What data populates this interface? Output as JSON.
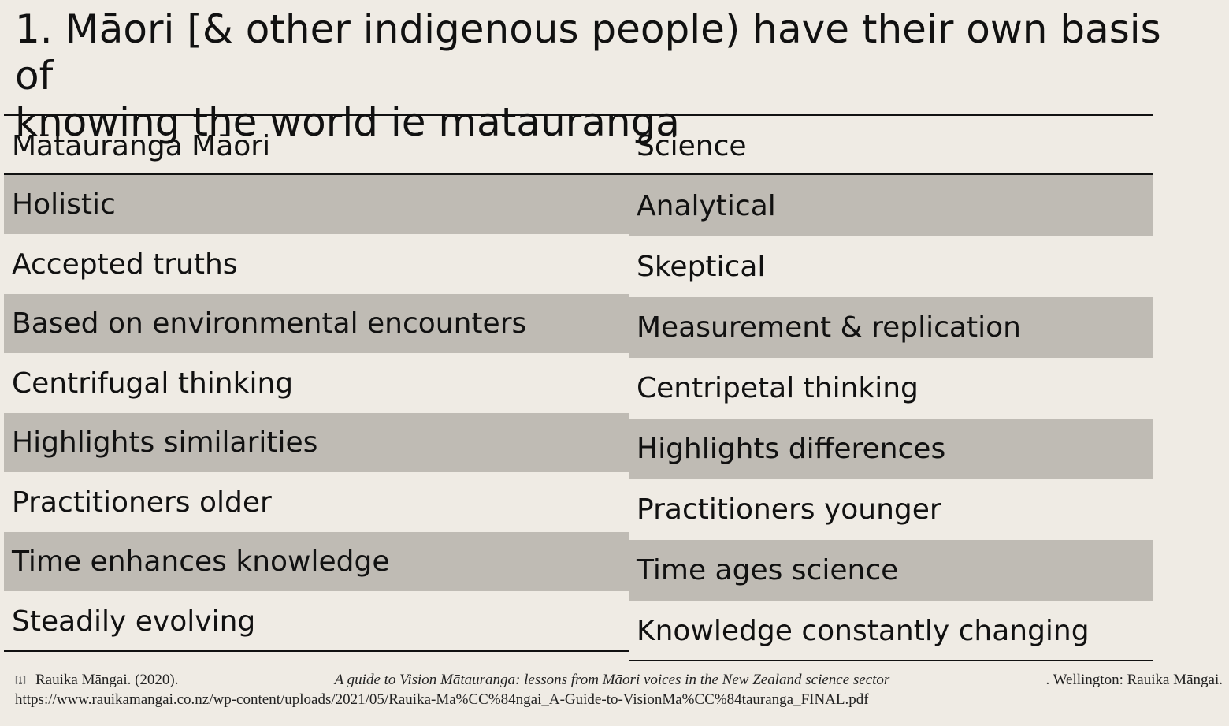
{
  "slide": {
    "title_line1": "1. Māori [& other indigenous people) have their own basis of",
    "title_line2": "knowing the world ie matauranga"
  },
  "table": {
    "headers": [
      "Mātauranga Māori",
      "Science"
    ],
    "left": [
      "Holistic",
      "Accepted truths",
      "Based on environmental encounters",
      "Centrifugal thinking",
      "Highlights similarities",
      "Practitioners older",
      "Time enhances knowledge",
      "Steadily evolving"
    ],
    "right": [
      "Analytical",
      "Skeptical",
      "Measurement & replication",
      "Centripetal thinking",
      "Highlights differences",
      "Practitioners younger",
      "Time ages science",
      "Knowledge constantly changing"
    ]
  },
  "footnote": {
    "marker": "[1]",
    "author": "Rauika Māngai. (2020).",
    "title": "A guide to Vision Mātauranga: lessons from Māori voices in the New Zealand science sector",
    "publisher": ". Wellington: Rauika Māngai.",
    "url": "https://www.rauikamangai.co.nz/wp-content/uploads/2021/05/Rauika-Ma%CC%84ngai_A-Guide-to-VisionMa%CC%84tauranga_FINAL.pdf"
  },
  "colors": {
    "background": "#efebe4",
    "row_shade": "#bfbbb4",
    "text": "#111111"
  }
}
